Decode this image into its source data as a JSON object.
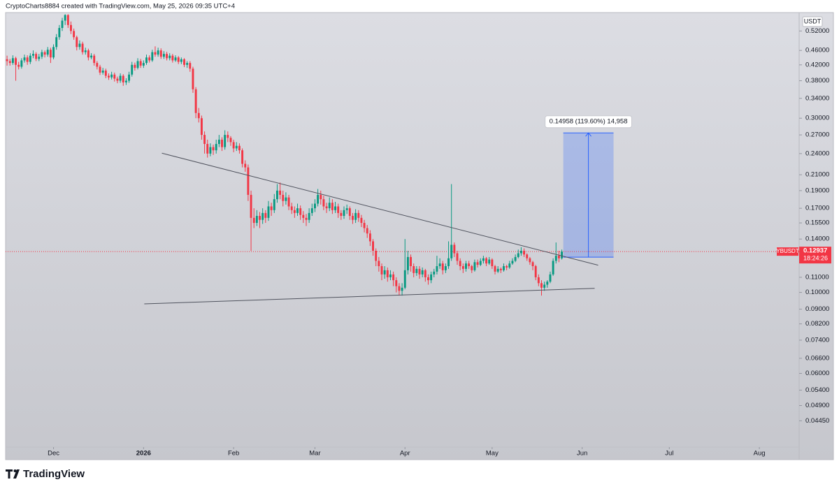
{
  "chart_data": {
    "type": "candlestick",
    "source_note": "CryptoCharts8884 created with TradingView.com, May 25, 2026 09:35 UTC+4",
    "currency": "USDT",
    "symbol": "YBUSDT",
    "last_price": 0.12937,
    "countdown": "18:24:26",
    "brand": "TradingView",
    "log_scale": true,
    "grid": false,
    "up_color": "#089981",
    "down_color": "#f23645",
    "xlim": [
      -16.5,
      256.7
    ],
    "xticks": [
      {
        "value": 0,
        "label": "Dec"
      },
      {
        "value": 31,
        "label": "2026"
      },
      {
        "value": 62,
        "label": "Feb"
      },
      {
        "value": 90,
        "label": "Mar"
      },
      {
        "value": 121,
        "label": "Apr"
      },
      {
        "value": 151,
        "label": "May"
      },
      {
        "value": 182,
        "label": "Jun"
      },
      {
        "value": 212,
        "label": "Jul"
      },
      {
        "value": 243,
        "label": "Aug"
      }
    ],
    "ylim": [
      0.0377,
      0.584
    ],
    "yticks": [
      {
        "value": 0.52,
        "label": "0.52000"
      },
      {
        "value": 0.46,
        "label": "0.46000"
      },
      {
        "value": 0.42,
        "label": "0.42000"
      },
      {
        "value": 0.38,
        "label": "0.38000"
      },
      {
        "value": 0.34,
        "label": "0.34000"
      },
      {
        "value": 0.3,
        "label": "0.30000"
      },
      {
        "value": 0.27,
        "label": "0.27000"
      },
      {
        "value": 0.24,
        "label": "0.24000"
      },
      {
        "value": 0.21,
        "label": "0.21000"
      },
      {
        "value": 0.19,
        "label": "0.19000"
      },
      {
        "value": 0.17,
        "label": "0.17000"
      },
      {
        "value": 0.155,
        "label": "0.15500"
      },
      {
        "value": 0.14,
        "label": "0.14000"
      },
      {
        "value": 0.11,
        "label": "0.11000"
      },
      {
        "value": 0.1,
        "label": "0.10000"
      },
      {
        "value": 0.09,
        "label": "0.09000"
      },
      {
        "value": 0.082,
        "label": "0.08200"
      },
      {
        "value": 0.074,
        "label": "0.07400"
      },
      {
        "value": 0.066,
        "label": "0.06600"
      },
      {
        "value": 0.06,
        "label": "0.06000"
      },
      {
        "value": 0.054,
        "label": "0.05400"
      },
      {
        "value": 0.049,
        "label": "0.04900"
      },
      {
        "value": 0.0445,
        "label": "0.04450"
      }
    ],
    "trendlines": [
      {
        "x": [
          37.3,
          187.5
        ],
        "y": [
          0.2406,
          0.1187
        ]
      },
      {
        "x": [
          31.25,
          186.3
        ],
        "y": [
          0.093,
          0.1026
        ]
      }
    ],
    "projection": {
      "x": [
        175.5,
        192.8
      ],
      "y": [
        0.1249,
        0.2735
      ],
      "label": "0.14958 (119.60%) 14,958"
    },
    "x": [
      -16,
      -15,
      -14,
      -13,
      -12,
      -11,
      -10,
      -9,
      -8,
      -7,
      -6,
      -5,
      -4,
      -3,
      -2,
      -1,
      0,
      1,
      2,
      3,
      4,
      5,
      6,
      7,
      8,
      9,
      10,
      11,
      12,
      13,
      14,
      15,
      16,
      17,
      18,
      19,
      20,
      21,
      22,
      23,
      24,
      25,
      26,
      27,
      28,
      29,
      30,
      31,
      32,
      33,
      34,
      35,
      36,
      37,
      38,
      39,
      40,
      41,
      42,
      43,
      44,
      45,
      46,
      47,
      48,
      49,
      50,
      51,
      52,
      53,
      54,
      55,
      56,
      57,
      58,
      59,
      60,
      61,
      62,
      63,
      64,
      65,
      66,
      67,
      68,
      69,
      70,
      71,
      72,
      73,
      74,
      75,
      76,
      77,
      78,
      79,
      80,
      81,
      82,
      83,
      84,
      85,
      86,
      87,
      88,
      89,
      90,
      91,
      92,
      93,
      94,
      95,
      96,
      97,
      98,
      99,
      100,
      101,
      102,
      103,
      104,
      105,
      106,
      107,
      108,
      109,
      110,
      111,
      112,
      113,
      114,
      115,
      116,
      117,
      118,
      119,
      120,
      121,
      122,
      123,
      124,
      125,
      126,
      127,
      128,
      129,
      130,
      131,
      132,
      133,
      134,
      135,
      136,
      137,
      138,
      139,
      140,
      141,
      142,
      143,
      144,
      145,
      146,
      147,
      148,
      149,
      150,
      151,
      152,
      153,
      154,
      155,
      156,
      157,
      158,
      159,
      160,
      161,
      162,
      163,
      164,
      165,
      166,
      167,
      168,
      169,
      170,
      171,
      172,
      173,
      174,
      175
    ],
    "ohlc": [
      [
        0.435,
        0.445,
        0.418,
        0.43
      ],
      [
        0.43,
        0.436,
        0.418,
        0.425
      ],
      [
        0.425,
        0.446,
        0.42,
        0.438
      ],
      [
        0.438,
        0.442,
        0.38,
        0.42
      ],
      [
        0.42,
        0.428,
        0.408,
        0.415
      ],
      [
        0.415,
        0.438,
        0.41,
        0.432
      ],
      [
        0.432,
        0.448,
        0.426,
        0.44
      ],
      [
        0.44,
        0.446,
        0.42,
        0.428
      ],
      [
        0.428,
        0.452,
        0.422,
        0.445
      ],
      [
        0.445,
        0.46,
        0.438,
        0.45
      ],
      [
        0.45,
        0.455,
        0.43,
        0.436
      ],
      [
        0.436,
        0.45,
        0.43,
        0.442
      ],
      [
        0.442,
        0.462,
        0.436,
        0.455
      ],
      [
        0.455,
        0.46,
        0.44,
        0.448
      ],
      [
        0.448,
        0.47,
        0.442,
        0.462
      ],
      [
        0.462,
        0.468,
        0.425,
        0.44
      ],
      [
        0.44,
        0.478,
        0.435,
        0.47
      ],
      [
        0.47,
        0.51,
        0.462,
        0.5
      ],
      [
        0.5,
        0.54,
        0.492,
        0.53
      ],
      [
        0.53,
        0.565,
        0.52,
        0.555
      ],
      [
        0.555,
        0.578,
        0.54,
        0.575
      ],
      [
        0.575,
        0.578,
        0.53,
        0.54
      ],
      [
        0.54,
        0.552,
        0.51,
        0.52
      ],
      [
        0.52,
        0.528,
        0.492,
        0.5
      ],
      [
        0.5,
        0.505,
        0.46,
        0.47
      ],
      [
        0.47,
        0.49,
        0.462,
        0.48
      ],
      [
        0.48,
        0.486,
        0.448,
        0.455
      ],
      [
        0.455,
        0.468,
        0.448,
        0.46
      ],
      [
        0.46,
        0.465,
        0.432,
        0.44
      ],
      [
        0.44,
        0.452,
        0.435,
        0.445
      ],
      [
        0.445,
        0.45,
        0.418,
        0.425
      ],
      [
        0.425,
        0.43,
        0.408,
        0.415
      ],
      [
        0.415,
        0.42,
        0.394,
        0.4
      ],
      [
        0.4,
        0.412,
        0.395,
        0.405
      ],
      [
        0.405,
        0.41,
        0.386,
        0.392
      ],
      [
        0.392,
        0.398,
        0.382,
        0.388
      ],
      [
        0.388,
        0.402,
        0.383,
        0.395
      ],
      [
        0.395,
        0.4,
        0.378,
        0.385
      ],
      [
        0.385,
        0.39,
        0.374,
        0.38
      ],
      [
        0.38,
        0.398,
        0.375,
        0.392
      ],
      [
        0.392,
        0.396,
        0.368,
        0.376
      ],
      [
        0.376,
        0.386,
        0.37,
        0.38
      ],
      [
        0.38,
        0.402,
        0.375,
        0.395
      ],
      [
        0.395,
        0.428,
        0.39,
        0.42
      ],
      [
        0.42,
        0.426,
        0.405,
        0.412
      ],
      [
        0.412,
        0.438,
        0.408,
        0.43
      ],
      [
        0.43,
        0.436,
        0.412,
        0.418
      ],
      [
        0.418,
        0.432,
        0.412,
        0.425
      ],
      [
        0.425,
        0.448,
        0.42,
        0.44
      ],
      [
        0.44,
        0.446,
        0.426,
        0.432
      ],
      [
        0.432,
        0.462,
        0.428,
        0.455
      ],
      [
        0.455,
        0.472,
        0.442,
        0.448
      ],
      [
        0.448,
        0.468,
        0.442,
        0.46
      ],
      [
        0.46,
        0.466,
        0.436,
        0.442
      ],
      [
        0.442,
        0.458,
        0.436,
        0.45
      ],
      [
        0.45,
        0.456,
        0.432,
        0.438
      ],
      [
        0.438,
        0.452,
        0.432,
        0.445
      ],
      [
        0.445,
        0.45,
        0.426,
        0.432
      ],
      [
        0.432,
        0.446,
        0.428,
        0.44
      ],
      [
        0.44,
        0.444,
        0.422,
        0.428
      ],
      [
        0.428,
        0.44,
        0.422,
        0.435
      ],
      [
        0.435,
        0.438,
        0.414,
        0.42
      ],
      [
        0.42,
        0.43,
        0.412,
        0.425
      ],
      [
        0.425,
        0.43,
        0.402,
        0.41
      ],
      [
        0.41,
        0.415,
        0.352,
        0.36
      ],
      [
        0.36,
        0.365,
        0.3,
        0.31
      ],
      [
        0.31,
        0.32,
        0.292,
        0.3
      ],
      [
        0.3,
        0.305,
        0.262,
        0.27
      ],
      [
        0.27,
        0.276,
        0.24,
        0.255
      ],
      [
        0.255,
        0.262,
        0.234,
        0.24
      ],
      [
        0.24,
        0.256,
        0.236,
        0.25
      ],
      [
        0.25,
        0.254,
        0.238,
        0.245
      ],
      [
        0.245,
        0.262,
        0.24,
        0.255
      ],
      [
        0.255,
        0.27,
        0.25,
        0.262
      ],
      [
        0.262,
        0.266,
        0.244,
        0.25
      ],
      [
        0.25,
        0.278,
        0.246,
        0.27
      ],
      [
        0.27,
        0.276,
        0.258,
        0.265
      ],
      [
        0.265,
        0.268,
        0.252,
        0.258
      ],
      [
        0.258,
        0.262,
        0.242,
        0.248
      ],
      [
        0.248,
        0.258,
        0.244,
        0.252
      ],
      [
        0.252,
        0.256,
        0.24,
        0.245
      ],
      [
        0.245,
        0.248,
        0.22,
        0.225
      ],
      [
        0.225,
        0.23,
        0.214,
        0.22
      ],
      [
        0.22,
        0.224,
        0.178,
        0.185
      ],
      [
        0.185,
        0.19,
        0.13,
        0.16
      ],
      [
        0.16,
        0.17,
        0.15,
        0.155
      ],
      [
        0.155,
        0.168,
        0.152,
        0.162
      ],
      [
        0.162,
        0.166,
        0.15,
        0.158
      ],
      [
        0.158,
        0.17,
        0.154,
        0.165
      ],
      [
        0.165,
        0.168,
        0.155,
        0.16
      ],
      [
        0.16,
        0.178,
        0.157,
        0.172
      ],
      [
        0.172,
        0.176,
        0.162,
        0.168
      ],
      [
        0.168,
        0.186,
        0.165,
        0.18
      ],
      [
        0.18,
        0.198,
        0.176,
        0.19
      ],
      [
        0.19,
        0.2,
        0.18,
        0.185
      ],
      [
        0.185,
        0.19,
        0.172,
        0.178
      ],
      [
        0.178,
        0.188,
        0.174,
        0.182
      ],
      [
        0.182,
        0.185,
        0.168,
        0.172
      ],
      [
        0.172,
        0.176,
        0.164,
        0.168
      ],
      [
        0.168,
        0.172,
        0.16,
        0.165
      ],
      [
        0.165,
        0.175,
        0.162,
        0.17
      ],
      [
        0.17,
        0.173,
        0.158,
        0.163
      ],
      [
        0.163,
        0.167,
        0.155,
        0.16
      ],
      [
        0.16,
        0.164,
        0.152,
        0.158
      ],
      [
        0.158,
        0.17,
        0.155,
        0.165
      ],
      [
        0.165,
        0.175,
        0.162,
        0.17
      ],
      [
        0.17,
        0.18,
        0.166,
        0.175
      ],
      [
        0.175,
        0.192,
        0.172,
        0.185
      ],
      [
        0.185,
        0.19,
        0.174,
        0.18
      ],
      [
        0.18,
        0.184,
        0.168,
        0.172
      ],
      [
        0.172,
        0.176,
        0.165,
        0.17
      ],
      [
        0.17,
        0.182,
        0.167,
        0.176
      ],
      [
        0.176,
        0.18,
        0.164,
        0.168
      ],
      [
        0.168,
        0.177,
        0.165,
        0.172
      ],
      [
        0.172,
        0.175,
        0.16,
        0.165
      ],
      [
        0.165,
        0.168,
        0.158,
        0.162
      ],
      [
        0.162,
        0.172,
        0.159,
        0.168
      ],
      [
        0.168,
        0.174,
        0.164,
        0.17
      ],
      [
        0.17,
        0.172,
        0.158,
        0.162
      ],
      [
        0.162,
        0.165,
        0.154,
        0.158
      ],
      [
        0.158,
        0.169,
        0.155,
        0.165
      ],
      [
        0.165,
        0.168,
        0.156,
        0.16
      ],
      [
        0.16,
        0.163,
        0.151,
        0.155
      ],
      [
        0.155,
        0.158,
        0.146,
        0.15
      ],
      [
        0.15,
        0.153,
        0.141,
        0.145
      ],
      [
        0.145,
        0.148,
        0.134,
        0.138
      ],
      [
        0.138,
        0.14,
        0.126,
        0.13
      ],
      [
        0.13,
        0.132,
        0.118,
        0.122
      ],
      [
        0.122,
        0.125,
        0.114,
        0.118
      ],
      [
        0.118,
        0.12,
        0.108,
        0.112
      ],
      [
        0.112,
        0.118,
        0.109,
        0.115
      ],
      [
        0.115,
        0.117,
        0.107,
        0.11
      ],
      [
        0.11,
        0.115,
        0.108,
        0.112
      ],
      [
        0.112,
        0.114,
        0.104,
        0.108
      ],
      [
        0.108,
        0.11,
        0.1,
        0.104
      ],
      [
        0.104,
        0.106,
        0.098,
        0.101
      ],
      [
        0.101,
        0.106,
        0.098,
        0.103
      ],
      [
        0.103,
        0.14,
        0.102,
        0.115
      ],
      [
        0.115,
        0.13,
        0.112,
        0.125
      ],
      [
        0.125,
        0.127,
        0.114,
        0.118
      ],
      [
        0.118,
        0.12,
        0.11,
        0.113
      ],
      [
        0.113,
        0.118,
        0.111,
        0.116
      ],
      [
        0.116,
        0.118,
        0.109,
        0.112
      ],
      [
        0.112,
        0.117,
        0.11,
        0.115
      ],
      [
        0.115,
        0.116,
        0.107,
        0.11
      ],
      [
        0.11,
        0.112,
        0.105,
        0.108
      ],
      [
        0.108,
        0.114,
        0.106,
        0.112
      ],
      [
        0.112,
        0.116,
        0.11,
        0.114
      ],
      [
        0.114,
        0.126,
        0.112,
        0.118
      ],
      [
        0.118,
        0.124,
        0.116,
        0.12
      ],
      [
        0.12,
        0.122,
        0.112,
        0.115
      ],
      [
        0.115,
        0.12,
        0.113,
        0.118
      ],
      [
        0.118,
        0.138,
        0.116,
        0.124
      ],
      [
        0.124,
        0.198,
        0.122,
        0.135
      ],
      [
        0.135,
        0.137,
        0.125,
        0.128
      ],
      [
        0.128,
        0.13,
        0.119,
        0.122
      ],
      [
        0.122,
        0.124,
        0.115,
        0.118
      ],
      [
        0.118,
        0.12,
        0.113,
        0.116
      ],
      [
        0.116,
        0.122,
        0.114,
        0.12
      ],
      [
        0.12,
        0.122,
        0.116,
        0.118
      ],
      [
        0.118,
        0.119,
        0.113,
        0.115
      ],
      [
        0.115,
        0.123,
        0.114,
        0.121
      ],
      [
        0.121,
        0.123,
        0.117,
        0.119
      ],
      [
        0.119,
        0.124,
        0.118,
        0.122
      ],
      [
        0.122,
        0.126,
        0.12,
        0.124
      ],
      [
        0.124,
        0.125,
        0.118,
        0.12
      ],
      [
        0.12,
        0.125,
        0.119,
        0.123
      ],
      [
        0.123,
        0.124,
        0.116,
        0.118
      ],
      [
        0.118,
        0.119,
        0.112,
        0.114
      ],
      [
        0.114,
        0.118,
        0.113,
        0.116
      ],
      [
        0.116,
        0.117,
        0.113,
        0.115
      ],
      [
        0.115,
        0.12,
        0.114,
        0.118
      ],
      [
        0.118,
        0.119,
        0.115,
        0.117
      ],
      [
        0.117,
        0.122,
        0.116,
        0.12
      ],
      [
        0.12,
        0.124,
        0.119,
        0.122
      ],
      [
        0.122,
        0.127,
        0.121,
        0.125
      ],
      [
        0.125,
        0.131,
        0.124,
        0.128
      ],
      [
        0.128,
        0.133,
        0.126,
        0.13
      ],
      [
        0.13,
        0.132,
        0.125,
        0.127
      ],
      [
        0.127,
        0.128,
        0.122,
        0.124
      ],
      [
        0.124,
        0.125,
        0.119,
        0.121
      ],
      [
        0.121,
        0.122,
        0.115,
        0.118
      ],
      [
        0.118,
        0.119,
        0.108,
        0.11
      ],
      [
        0.11,
        0.112,
        0.104,
        0.106
      ],
      [
        0.106,
        0.108,
        0.098,
        0.103
      ],
      [
        0.103,
        0.107,
        0.101,
        0.105
      ],
      [
        0.105,
        0.108,
        0.103,
        0.107
      ],
      [
        0.107,
        0.114,
        0.106,
        0.112
      ],
      [
        0.112,
        0.124,
        0.111,
        0.122
      ],
      [
        0.122,
        0.137,
        0.12,
        0.126
      ],
      [
        0.126,
        0.13,
        0.121,
        0.124
      ],
      [
        0.124,
        0.131,
        0.123,
        0.12937
      ]
    ]
  }
}
